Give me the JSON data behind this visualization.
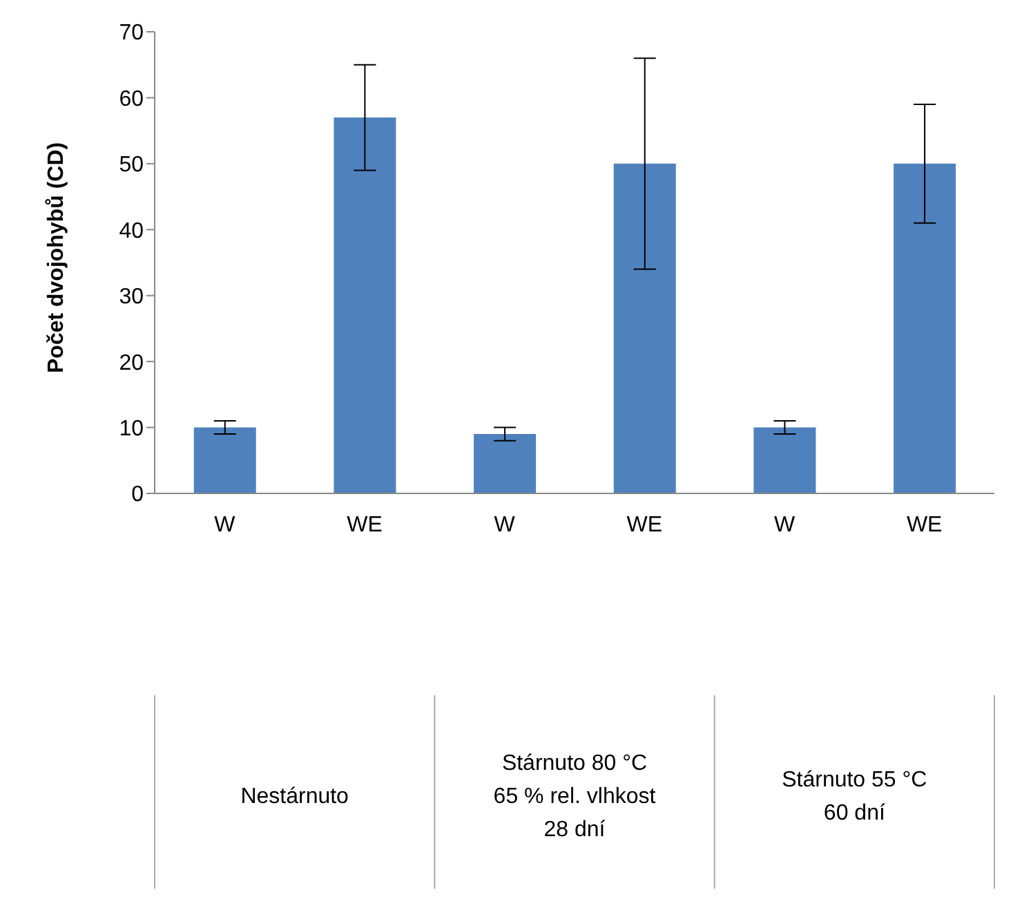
{
  "chart_data": {
    "type": "bar",
    "ylabel": "Počet dvojohybů (CD)",
    "categories": [
      "W",
      "WE",
      "W",
      "WE",
      "W",
      "WE"
    ],
    "values": [
      10,
      57,
      9,
      50,
      10,
      50
    ],
    "errors": [
      1,
      8,
      1,
      16,
      1,
      9
    ],
    "color": "#4f81bd",
    "ylim": [
      0,
      70
    ],
    "yticks": [
      0,
      10,
      20,
      30,
      40,
      50,
      60,
      70
    ],
    "annotations": [
      "Nestárnuto",
      "Stárnuto 80 °C\n65 % rel. vlhkost\n28 dní",
      "Stárnuto 55 °C\n60 dní"
    ]
  }
}
